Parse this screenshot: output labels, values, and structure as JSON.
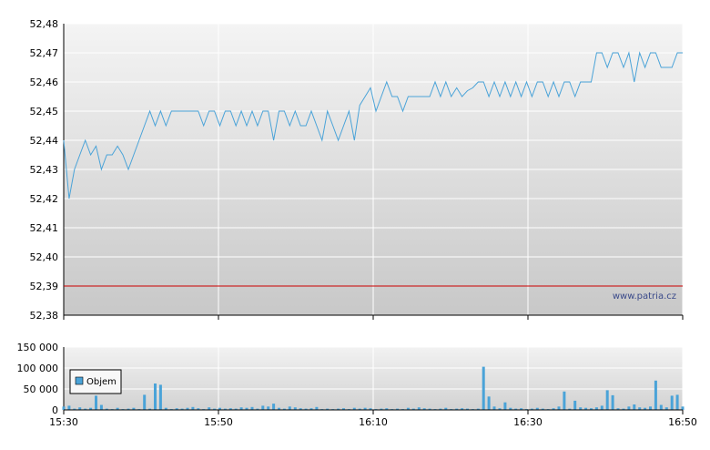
{
  "watermark": "www.patria.cz",
  "colors": {
    "price_line": "#4aa3d8",
    "reference_line": "#cc0000",
    "volume_bar": "#4aa3d8",
    "grid": "#ffffff"
  },
  "chart_data": [
    {
      "type": "line",
      "name": "price",
      "y_tick_labels": [
        "52,48",
        "52,47",
        "52,46",
        "52,45",
        "52,44",
        "52,43",
        "52,42",
        "52,41",
        "52,40",
        "52,39",
        "52,38"
      ],
      "ylim": [
        52.38,
        52.48
      ],
      "reference_value": 52.39,
      "x_tick_labels": [
        "15:30",
        "15:50",
        "16:10",
        "16:30",
        "16:50"
      ],
      "xlim": [
        "15:30",
        "16:50"
      ],
      "grid": true,
      "series": [
        {
          "points": [
            [
              0,
              52.44
            ],
            [
              1,
              52.42
            ],
            [
              2,
              52.43
            ],
            [
              3,
              52.435
            ],
            [
              4,
              52.44
            ],
            [
              5,
              52.435
            ],
            [
              6,
              52.438
            ],
            [
              7,
              52.43
            ],
            [
              8,
              52.435
            ],
            [
              9,
              52.435
            ],
            [
              10,
              52.438
            ],
            [
              11,
              52.435
            ],
            [
              12,
              52.43
            ],
            [
              13,
              52.435
            ],
            [
              14,
              52.44
            ],
            [
              15,
              52.445
            ],
            [
              16,
              52.45
            ],
            [
              17,
              52.445
            ],
            [
              18,
              52.45
            ],
            [
              19,
              52.445
            ],
            [
              20,
              52.45
            ],
            [
              21,
              52.45
            ],
            [
              22,
              52.45
            ],
            [
              23,
              52.45
            ],
            [
              24,
              52.45
            ],
            [
              25,
              52.45
            ],
            [
              26,
              52.445
            ],
            [
              27,
              52.45
            ],
            [
              28,
              52.45
            ],
            [
              29,
              52.445
            ],
            [
              30,
              52.45
            ],
            [
              31,
              52.45
            ],
            [
              32,
              52.445
            ],
            [
              33,
              52.45
            ],
            [
              34,
              52.445
            ],
            [
              35,
              52.45
            ],
            [
              36,
              52.445
            ],
            [
              37,
              52.45
            ],
            [
              38,
              52.45
            ],
            [
              39,
              52.44
            ],
            [
              40,
              52.45
            ],
            [
              41,
              52.45
            ],
            [
              42,
              52.445
            ],
            [
              43,
              52.45
            ],
            [
              44,
              52.445
            ],
            [
              45,
              52.445
            ],
            [
              46,
              52.45
            ],
            [
              47,
              52.445
            ],
            [
              48,
              52.44
            ],
            [
              49,
              52.45
            ],
            [
              50,
              52.445
            ],
            [
              51,
              52.44
            ],
            [
              52,
              52.445
            ],
            [
              53,
              52.45
            ],
            [
              54,
              52.44
            ],
            [
              55,
              52.452
            ],
            [
              56,
              52.455
            ],
            [
              57,
              52.458
            ],
            [
              58,
              52.45
            ],
            [
              59,
              52.455
            ],
            [
              60,
              52.46
            ],
            [
              61,
              52.455
            ],
            [
              62,
              52.455
            ],
            [
              63,
              52.45
            ],
            [
              64,
              52.455
            ],
            [
              65,
              52.455
            ],
            [
              66,
              52.455
            ],
            [
              67,
              52.455
            ],
            [
              68,
              52.455
            ],
            [
              69,
              52.46
            ],
            [
              70,
              52.455
            ],
            [
              71,
              52.46
            ],
            [
              72,
              52.455
            ],
            [
              73,
              52.458
            ],
            [
              74,
              52.455
            ],
            [
              75,
              52.457
            ],
            [
              76,
              52.458
            ],
            [
              77,
              52.46
            ],
            [
              78,
              52.46
            ],
            [
              79,
              52.455
            ],
            [
              80,
              52.46
            ],
            [
              81,
              52.455
            ],
            [
              82,
              52.46
            ],
            [
              83,
              52.455
            ],
            [
              84,
              52.46
            ],
            [
              85,
              52.455
            ],
            [
              86,
              52.46
            ],
            [
              87,
              52.455
            ],
            [
              88,
              52.46
            ],
            [
              89,
              52.46
            ],
            [
              90,
              52.455
            ],
            [
              91,
              52.46
            ],
            [
              92,
              52.455
            ],
            [
              93,
              52.46
            ],
            [
              94,
              52.46
            ],
            [
              95,
              52.455
            ],
            [
              96,
              52.46
            ],
            [
              97,
              52.46
            ],
            [
              98,
              52.46
            ],
            [
              99,
              52.47
            ],
            [
              100,
              52.47
            ],
            [
              101,
              52.465
            ],
            [
              102,
              52.47
            ],
            [
              103,
              52.47
            ],
            [
              104,
              52.465
            ],
            [
              105,
              52.47
            ],
            [
              106,
              52.46
            ],
            [
              107,
              52.47
            ],
            [
              108,
              52.465
            ],
            [
              109,
              52.47
            ],
            [
              110,
              52.47
            ],
            [
              111,
              52.465
            ],
            [
              112,
              52.465
            ],
            [
              113,
              52.465
            ],
            [
              114,
              52.47
            ],
            [
              115,
              52.47
            ]
          ]
        }
      ]
    },
    {
      "type": "bar",
      "name": "volume",
      "legend": "Objem",
      "y_tick_labels": [
        "150 000",
        "100 000",
        "50 000",
        "0"
      ],
      "ylim": [
        0,
        150000
      ],
      "x_tick_labels": [
        "15:30",
        "15:50",
        "16:10",
        "16:30",
        "16:50"
      ],
      "grid": true,
      "series": [
        {
          "name": "Objem",
          "bars": [
            [
              0,
              8000
            ],
            [
              1,
              10000
            ],
            [
              2,
              3000
            ],
            [
              3,
              6000
            ],
            [
              4,
              3000
            ],
            [
              5,
              5000
            ],
            [
              6,
              34000
            ],
            [
              7,
              12000
            ],
            [
              8,
              3000
            ],
            [
              9,
              2000
            ],
            [
              10,
              5000
            ],
            [
              11,
              2000
            ],
            [
              12,
              3000
            ],
            [
              13,
              5000
            ],
            [
              14,
              2000
            ],
            [
              15,
              36000
            ],
            [
              16,
              3000
            ],
            [
              17,
              63000
            ],
            [
              18,
              60000
            ],
            [
              19,
              5000
            ],
            [
              20,
              2000
            ],
            [
              21,
              4000
            ],
            [
              22,
              3000
            ],
            [
              23,
              5000
            ],
            [
              24,
              7000
            ],
            [
              25,
              4000
            ],
            [
              26,
              2000
            ],
            [
              27,
              6000
            ],
            [
              28,
              3000
            ],
            [
              29,
              5000
            ],
            [
              30,
              3000
            ],
            [
              31,
              4000
            ],
            [
              32,
              3000
            ],
            [
              33,
              6000
            ],
            [
              34,
              5000
            ],
            [
              35,
              7000
            ],
            [
              36,
              3000
            ],
            [
              37,
              10000
            ],
            [
              38,
              8000
            ],
            [
              39,
              15000
            ],
            [
              40,
              5000
            ],
            [
              41,
              3000
            ],
            [
              42,
              8000
            ],
            [
              43,
              6000
            ],
            [
              44,
              4000
            ],
            [
              45,
              3000
            ],
            [
              46,
              4000
            ],
            [
              47,
              7000
            ],
            [
              48,
              2000
            ],
            [
              49,
              3000
            ],
            [
              50,
              2000
            ],
            [
              51,
              3000
            ],
            [
              52,
              4000
            ],
            [
              53,
              2000
            ],
            [
              54,
              5000
            ],
            [
              55,
              3000
            ],
            [
              56,
              5000
            ],
            [
              57,
              4000
            ],
            [
              58,
              2000
            ],
            [
              59,
              3000
            ],
            [
              60,
              4000
            ],
            [
              61,
              2000
            ],
            [
              62,
              3000
            ],
            [
              63,
              2000
            ],
            [
              64,
              5000
            ],
            [
              65,
              3000
            ],
            [
              66,
              6000
            ],
            [
              67,
              4000
            ],
            [
              68,
              3000
            ],
            [
              69,
              2000
            ],
            [
              70,
              3000
            ],
            [
              71,
              5000
            ],
            [
              72,
              2000
            ],
            [
              73,
              3000
            ],
            [
              74,
              4000
            ],
            [
              75,
              3000
            ],
            [
              76,
              2000
            ],
            [
              77,
              3000
            ],
            [
              78,
              103000
            ],
            [
              79,
              32000
            ],
            [
              80,
              8000
            ],
            [
              81,
              4000
            ],
            [
              82,
              18000
            ],
            [
              83,
              5000
            ],
            [
              84,
              3000
            ],
            [
              85,
              4000
            ],
            [
              86,
              2000
            ],
            [
              87,
              3000
            ],
            [
              88,
              5000
            ],
            [
              89,
              3000
            ],
            [
              90,
              2000
            ],
            [
              91,
              4000
            ],
            [
              92,
              8000
            ],
            [
              93,
              44000
            ],
            [
              94,
              3000
            ],
            [
              95,
              22000
            ],
            [
              96,
              6000
            ],
            [
              97,
              5000
            ],
            [
              98,
              4000
            ],
            [
              99,
              6000
            ],
            [
              100,
              10000
            ],
            [
              101,
              47000
            ],
            [
              102,
              35000
            ],
            [
              103,
              4000
            ],
            [
              104,
              3000
            ],
            [
              105,
              8000
            ],
            [
              106,
              13000
            ],
            [
              107,
              6000
            ],
            [
              108,
              5000
            ],
            [
              109,
              8000
            ],
            [
              110,
              70000
            ],
            [
              111,
              12000
            ],
            [
              112,
              6000
            ],
            [
              113,
              34000
            ],
            [
              114,
              36000
            ],
            [
              115,
              8000
            ]
          ]
        }
      ]
    }
  ]
}
